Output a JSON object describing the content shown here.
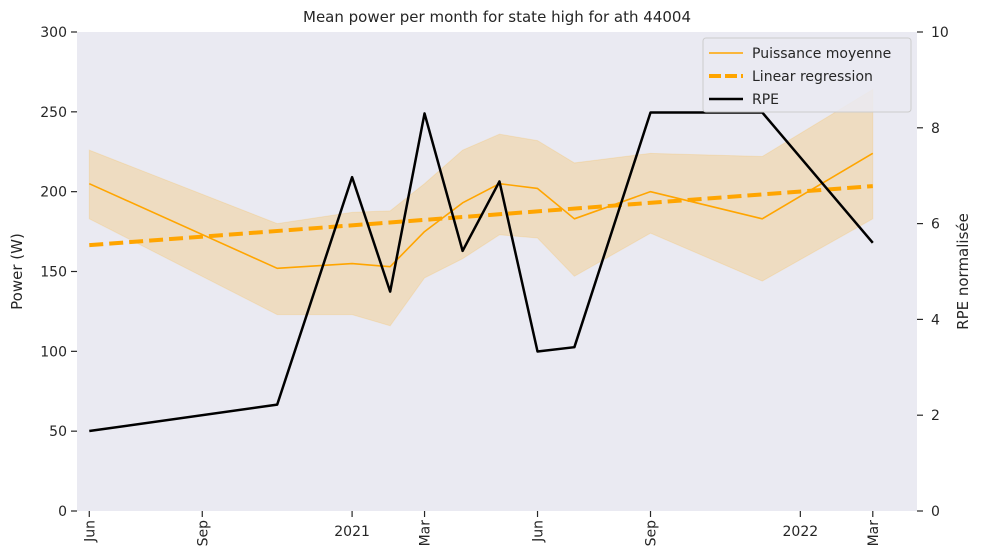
{
  "chart_data": {
    "type": "line",
    "title": "Mean power per month for state high for ath 44004",
    "xlabel": "",
    "ylabel": "Power (W)",
    "y2label": "RPE normalisée",
    "ylim": [
      0,
      300
    ],
    "y2lim": [
      0,
      10
    ],
    "xlim": [
      "2020-05-22",
      "2022-04-06"
    ],
    "yticks": [
      0,
      50,
      100,
      150,
      200,
      250,
      300
    ],
    "y2ticks": [
      0,
      2,
      4,
      6,
      8,
      10
    ],
    "xticks": [
      {
        "date": "2020-06-01",
        "label": "Jun",
        "rotated": true
      },
      {
        "date": "2020-09-01",
        "label": "Sep",
        "rotated": true
      },
      {
        "date": "2021-01-01",
        "label": "2021",
        "rotated": false
      },
      {
        "date": "2021-03-01",
        "label": "Mar",
        "rotated": true
      },
      {
        "date": "2021-06-01",
        "label": "Jun",
        "rotated": true
      },
      {
        "date": "2021-09-01",
        "label": "Sep",
        "rotated": true
      },
      {
        "date": "2022-01-01",
        "label": "2022",
        "rotated": false
      },
      {
        "date": "2022-03-01",
        "label": "Mar",
        "rotated": true
      }
    ],
    "grid": false,
    "legend_position": "top-right",
    "background": "#eaeaf2",
    "series": [
      {
        "name": "Puissance moyenne",
        "axis": "left",
        "color": "#ffa500",
        "style": "solid",
        "x": [
          "2020-06-01",
          "2020-11-01",
          "2021-01-01",
          "2021-02-01",
          "2021-03-01",
          "2021-04-01",
          "2021-05-01",
          "2021-06-01",
          "2021-07-01",
          "2021-09-01",
          "2021-12-01",
          "2022-03-01"
        ],
        "values": [
          205,
          152,
          155,
          153,
          175,
          193,
          205,
          202,
          183,
          200,
          183,
          224
        ]
      },
      {
        "name": "Linear regression",
        "axis": "left",
        "color": "#ffa500",
        "style": "dashed",
        "x": [
          "2020-06-01",
          "2022-03-01"
        ],
        "values": [
          166.5,
          203.5
        ]
      },
      {
        "name": "RPE",
        "axis": "right",
        "color": "#000000",
        "style": "solid",
        "x": [
          "2020-06-01",
          "2020-11-01",
          "2021-01-01",
          "2021-02-01",
          "2021-03-01",
          "2021-04-01",
          "2021-05-01",
          "2021-06-01",
          "2021-07-01",
          "2021-09-01",
          "2021-12-01",
          "2022-03-01"
        ],
        "values": [
          1.67,
          2.22,
          6.97,
          4.58,
          8.3,
          5.43,
          6.88,
          3.33,
          3.42,
          8.32,
          8.32,
          5.6
        ]
      }
    ],
    "band": {
      "axis": "left",
      "color": "#ffa500",
      "x": [
        "2020-06-01",
        "2020-11-01",
        "2021-01-01",
        "2021-02-01",
        "2021-03-01",
        "2021-04-01",
        "2021-05-01",
        "2021-06-01",
        "2021-07-01",
        "2021-09-01",
        "2021-12-01",
        "2022-03-01"
      ],
      "upper": [
        226,
        180,
        187,
        188,
        205,
        226,
        236,
        232,
        218,
        224,
        222,
        264
      ],
      "lower": [
        183,
        123,
        123,
        116,
        146,
        158,
        173,
        171,
        147,
        174,
        144,
        183
      ]
    }
  }
}
